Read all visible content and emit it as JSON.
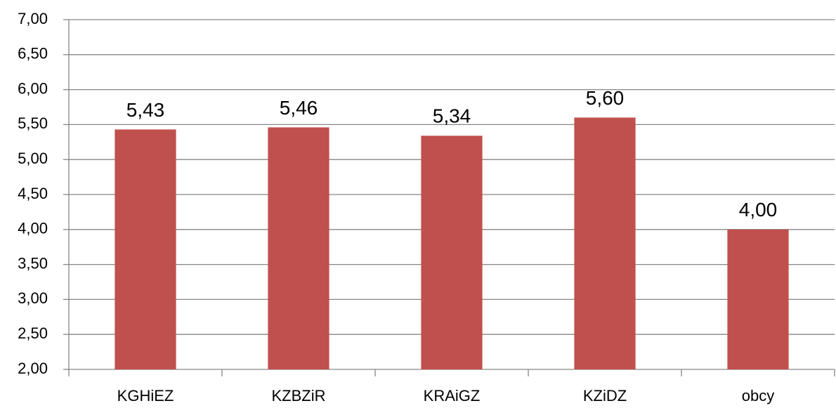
{
  "chart_data": {
    "type": "bar",
    "categories": [
      "KGHiEZ",
      "KZBZiR",
      "KRAiGZ",
      "KZiDZ",
      "obcy"
    ],
    "values": [
      5.43,
      5.46,
      5.34,
      5.6,
      4.0
    ],
    "value_labels": [
      "5,43",
      "5,46",
      "5,34",
      "5,60",
      "4,00"
    ],
    "color": "#c0504d",
    "ylim": [
      2,
      7
    ],
    "yticks": [
      {
        "value": 2,
        "label": "2,00"
      },
      {
        "value": 2.5,
        "label": "2,50"
      },
      {
        "value": 3,
        "label": "3,00"
      },
      {
        "value": 3.5,
        "label": "3,50"
      },
      {
        "value": 4,
        "label": "4,00"
      },
      {
        "value": 4.5,
        "label": "4,50"
      },
      {
        "value": 5,
        "label": "5,00"
      },
      {
        "value": 5.5,
        "label": "5,50"
      },
      {
        "value": 6,
        "label": "6,00"
      },
      {
        "value": 6.5,
        "label": "6,50"
      },
      {
        "value": 7,
        "label": "7,00"
      }
    ],
    "grid": true
  }
}
